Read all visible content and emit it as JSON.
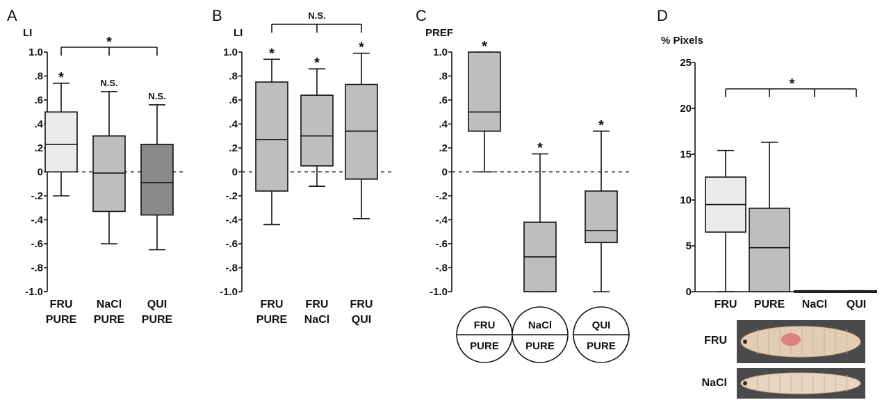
{
  "chart_data": [
    {
      "panel_label": "A",
      "type": "box",
      "ylabel": "LI",
      "ylim": [
        -1.0,
        1.0
      ],
      "yticks": [
        "1.0",
        ".8",
        ".6",
        ".4",
        ".2",
        "0",
        "-.2",
        "-.4",
        "-.6",
        "-.8",
        "-1.0"
      ],
      "zero_line": true,
      "categories": [
        [
          "FRU",
          "PURE"
        ],
        [
          "NaCl",
          "PURE"
        ],
        [
          "QUI",
          "PURE"
        ]
      ],
      "boxes": [
        {
          "min": -0.2,
          "q1": 0.0,
          "median": 0.23,
          "q3": 0.5,
          "max": 0.74,
          "fill": "#ebebeb",
          "annotation": "*"
        },
        {
          "min": -0.6,
          "q1": -0.33,
          "median": -0.01,
          "q3": 0.3,
          "max": 0.67,
          "fill": "#bebebe",
          "annotation": "N.S."
        },
        {
          "min": -0.65,
          "q1": -0.36,
          "median": -0.09,
          "q3": 0.23,
          "max": 0.56,
          "fill": "#8a8a8a",
          "annotation": "N.S."
        }
      ],
      "bracket": {
        "from": 0,
        "to": 2,
        "mid": 1,
        "label": "*"
      }
    },
    {
      "panel_label": "B",
      "type": "box",
      "ylabel": "LI",
      "ylim": [
        -1.0,
        1.0
      ],
      "yticks": [
        "1.0",
        ".8",
        ".6",
        ".4",
        ".2",
        "0",
        "-.2",
        "-.4",
        "-.6",
        "-.8",
        "-1.0"
      ],
      "zero_line": true,
      "categories": [
        [
          "FRU",
          "PURE"
        ],
        [
          "FRU",
          "NaCl"
        ],
        [
          "FRU",
          "QUI"
        ]
      ],
      "boxes": [
        {
          "min": -0.44,
          "q1": -0.16,
          "median": 0.27,
          "q3": 0.75,
          "max": 0.94,
          "fill": "#bebebe",
          "annotation": "*"
        },
        {
          "min": -0.12,
          "q1": 0.05,
          "median": 0.3,
          "q3": 0.64,
          "max": 0.86,
          "fill": "#bebebe",
          "annotation": "*"
        },
        {
          "min": -0.39,
          "q1": -0.06,
          "median": 0.34,
          "q3": 0.73,
          "max": 0.99,
          "fill": "#bebebe",
          "annotation": "*"
        }
      ],
      "bracket": {
        "from": 0,
        "to": 2,
        "mid": 1,
        "label": "N.S."
      }
    },
    {
      "panel_label": "C",
      "type": "box",
      "ylabel": "PREF",
      "ylim": [
        -1.0,
        1.0
      ],
      "yticks": [
        "1.0",
        ".8",
        ".6",
        ".4",
        ".2",
        "0",
        "-.2",
        "-.4",
        "-.6",
        "-.8",
        "-1.0"
      ],
      "zero_line": true,
      "categories": [
        [
          "FRU",
          "PURE"
        ],
        [
          "NaCl",
          "PURE"
        ],
        [
          "QUI",
          "PURE"
        ]
      ],
      "category_style": "circles",
      "boxes": [
        {
          "min": 0.0,
          "q1": 0.34,
          "median": 0.5,
          "q3": 1.0,
          "max": 1.0,
          "fill": "#bebebe",
          "annotation": "*"
        },
        {
          "min": -1.0,
          "q1": -1.0,
          "median": -0.71,
          "q3": -0.42,
          "max": 0.15,
          "fill": "#bebebe",
          "annotation": "*"
        },
        {
          "min": -1.0,
          "q1": -0.59,
          "median": -0.49,
          "q3": -0.16,
          "max": 0.34,
          "fill": "#bebebe",
          "annotation": "*"
        }
      ]
    },
    {
      "panel_label": "D",
      "type": "box",
      "ylabel": "% Pixels",
      "ylim": [
        0,
        25
      ],
      "yticks": [
        "25",
        "20",
        "15",
        "10",
        "5",
        "0"
      ],
      "zero_line": false,
      "categories": [
        [
          "FRU"
        ],
        [
          "PURE"
        ],
        [
          "NaCl"
        ],
        [
          "QUI"
        ]
      ],
      "boxes": [
        {
          "min": 0,
          "q1": 6.5,
          "median": 9.5,
          "q3": 12.5,
          "max": 15.4,
          "fill": "#ebebeb"
        },
        {
          "min": 0,
          "q1": 0,
          "median": 4.8,
          "q3": 9.1,
          "max": 16.3,
          "fill": "#bebebe"
        },
        {
          "min": 0,
          "q1": 0,
          "median": 0.05,
          "q3": 0.1,
          "max": 0.1,
          "fill": "#bebebe"
        },
        {
          "min": 0,
          "q1": 0,
          "median": 0.05,
          "q3": 0.1,
          "max": 0.1,
          "fill": "#bebebe"
        }
      ],
      "bracket": {
        "from": 0,
        "to": 3,
        "ticks": [
          1,
          2
        ],
        "label": "*"
      },
      "photos": [
        {
          "label": "FRU",
          "body_color": "#e2ccb4",
          "spot_color": "#d96a70"
        },
        {
          "label": "NaCl",
          "body_color": "#e6d5bf",
          "spot_color": ""
        }
      ]
    }
  ]
}
